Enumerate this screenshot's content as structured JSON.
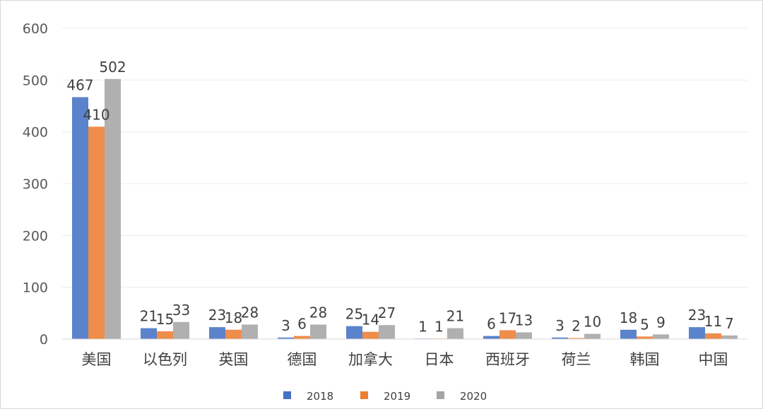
{
  "chart_data": {
    "type": "bar",
    "categories": [
      "美国",
      "以色列",
      "英国",
      "德国",
      "加拿大",
      "日本",
      "西班牙",
      "荷兰",
      "韩国",
      "中国"
    ],
    "series": [
      {
        "name": "2018",
        "color": "#4472c4",
        "values": [
          467,
          21,
          23,
          3,
          25,
          1,
          6,
          3,
          18,
          23
        ]
      },
      {
        "name": "2019",
        "color": "#ed7d31",
        "values": [
          410,
          15,
          18,
          6,
          14,
          1,
          17,
          2,
          5,
          11
        ]
      },
      {
        "name": "2020",
        "color": "#a5a5a5",
        "values": [
          502,
          33,
          28,
          28,
          27,
          21,
          13,
          10,
          9,
          7
        ]
      }
    ],
    "y_ticks": [
      "0",
      "100",
      "200",
      "300",
      "400",
      "500",
      "600"
    ],
    "ylim": [
      0,
      600
    ],
    "grid": true,
    "legend_position": "bottom"
  }
}
